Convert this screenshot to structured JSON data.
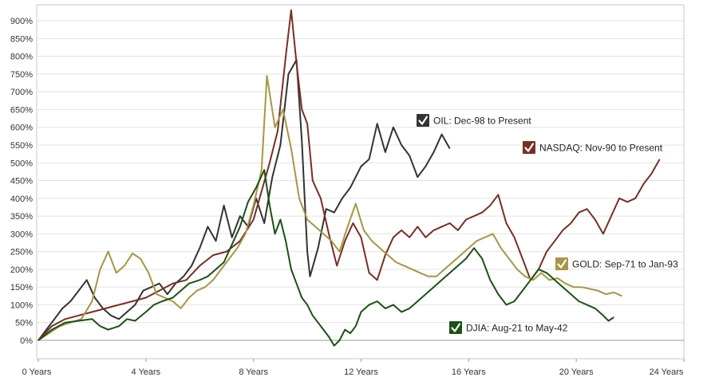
{
  "chart_data": {
    "type": "line",
    "title": "",
    "xlabel": "",
    "ylabel": "",
    "xlim": [
      0,
      24
    ],
    "ylim": [
      -20,
      940
    ],
    "grid": true,
    "legend_placement": "inline labels near series ends",
    "x_ticks": [
      0,
      4,
      8,
      12,
      16,
      20,
      24
    ],
    "x_tick_labels": [
      "0 Years",
      "4 Years",
      "8 Years",
      "12 Years",
      "16 Years",
      "20 Years",
      "24 Years"
    ],
    "y_ticks": [
      0,
      50,
      100,
      150,
      200,
      250,
      300,
      350,
      400,
      450,
      500,
      550,
      600,
      650,
      700,
      750,
      800,
      850,
      900
    ],
    "y_tick_labels": [
      "0%",
      "50%",
      "100%",
      "150%",
      "200%",
      "250%",
      "300%",
      "350%",
      "400%",
      "450%",
      "500%",
      "550%",
      "600%",
      "650%",
      "700%",
      "750%",
      "800%",
      "850%",
      "900%"
    ],
    "series": [
      {
        "name": "OIL: Dec-98 to Present",
        "color": "#333333",
        "points": [
          [
            0,
            0
          ],
          [
            0.3,
            30
          ],
          [
            0.6,
            60
          ],
          [
            0.9,
            90
          ],
          [
            1.2,
            110
          ],
          [
            1.5,
            140
          ],
          [
            1.8,
            170
          ],
          [
            2.1,
            120
          ],
          [
            2.4,
            90
          ],
          [
            2.7,
            70
          ],
          [
            3,
            60
          ],
          [
            3.3,
            80
          ],
          [
            3.6,
            100
          ],
          [
            3.9,
            140
          ],
          [
            4.2,
            150
          ],
          [
            4.5,
            160
          ],
          [
            4.8,
            130
          ],
          [
            5.1,
            160
          ],
          [
            5.4,
            180
          ],
          [
            5.7,
            210
          ],
          [
            6,
            260
          ],
          [
            6.3,
            320
          ],
          [
            6.6,
            280
          ],
          [
            6.9,
            380
          ],
          [
            7.2,
            290
          ],
          [
            7.5,
            350
          ],
          [
            7.8,
            320
          ],
          [
            8.1,
            400
          ],
          [
            8.4,
            330
          ],
          [
            8.7,
            460
          ],
          [
            9,
            550
          ],
          [
            9.3,
            750
          ],
          [
            9.6,
            790
          ],
          [
            9.8,
            560
          ],
          [
            10,
            250
          ],
          [
            10.1,
            180
          ],
          [
            10.4,
            260
          ],
          [
            10.7,
            370
          ],
          [
            11,
            360
          ],
          [
            11.3,
            400
          ],
          [
            11.6,
            430
          ],
          [
            12,
            490
          ],
          [
            12.3,
            510
          ],
          [
            12.6,
            610
          ],
          [
            12.9,
            530
          ],
          [
            13.2,
            600
          ],
          [
            13.5,
            550
          ],
          [
            13.8,
            520
          ],
          [
            14.1,
            460
          ],
          [
            14.4,
            490
          ],
          [
            14.7,
            530
          ],
          [
            15,
            580
          ],
          [
            15.3,
            540
          ]
        ]
      },
      {
        "name": "NASDAQ: Nov-90 to Present",
        "color": "#7a2e25",
        "points": [
          [
            0,
            0
          ],
          [
            0.5,
            40
          ],
          [
            1,
            60
          ],
          [
            1.5,
            70
          ],
          [
            2,
            80
          ],
          [
            2.5,
            90
          ],
          [
            3,
            100
          ],
          [
            3.5,
            110
          ],
          [
            4,
            120
          ],
          [
            4.5,
            140
          ],
          [
            5,
            160
          ],
          [
            5.5,
            170
          ],
          [
            6,
            210
          ],
          [
            6.5,
            240
          ],
          [
            7,
            250
          ],
          [
            7.5,
            280
          ],
          [
            8,
            340
          ],
          [
            8.3,
            420
          ],
          [
            8.6,
            500
          ],
          [
            8.9,
            590
          ],
          [
            9.2,
            800
          ],
          [
            9.4,
            930
          ],
          [
            9.6,
            780
          ],
          [
            9.8,
            650
          ],
          [
            10,
            610
          ],
          [
            10.2,
            450
          ],
          [
            10.5,
            400
          ],
          [
            10.8,
            300
          ],
          [
            11.1,
            210
          ],
          [
            11.4,
            280
          ],
          [
            11.7,
            330
          ],
          [
            12,
            290
          ],
          [
            12.3,
            190
          ],
          [
            12.6,
            170
          ],
          [
            12.9,
            240
          ],
          [
            13.2,
            290
          ],
          [
            13.5,
            310
          ],
          [
            13.8,
            290
          ],
          [
            14.1,
            320
          ],
          [
            14.4,
            290
          ],
          [
            14.7,
            310
          ],
          [
            15,
            320
          ],
          [
            15.3,
            330
          ],
          [
            15.6,
            310
          ],
          [
            15.9,
            340
          ],
          [
            16.2,
            350
          ],
          [
            16.5,
            360
          ],
          [
            16.8,
            380
          ],
          [
            17.1,
            410
          ],
          [
            17.4,
            330
          ],
          [
            17.7,
            290
          ],
          [
            18,
            230
          ],
          [
            18.3,
            170
          ],
          [
            18.6,
            200
          ],
          [
            18.9,
            250
          ],
          [
            19.2,
            280
          ],
          [
            19.5,
            310
          ],
          [
            19.8,
            330
          ],
          [
            20.1,
            360
          ],
          [
            20.4,
            370
          ],
          [
            20.7,
            340
          ],
          [
            21,
            300
          ],
          [
            21.3,
            350
          ],
          [
            21.6,
            400
          ],
          [
            21.9,
            390
          ],
          [
            22.2,
            400
          ],
          [
            22.5,
            440
          ],
          [
            22.8,
            470
          ],
          [
            23.1,
            510
          ]
        ]
      },
      {
        "name": "GOLD: Sep-71 to Jan-93",
        "color": "#a89645",
        "points": [
          [
            0,
            0
          ],
          [
            0.4,
            20
          ],
          [
            0.8,
            40
          ],
          [
            1.2,
            50
          ],
          [
            1.6,
            60
          ],
          [
            2,
            110
          ],
          [
            2.3,
            200
          ],
          [
            2.6,
            250
          ],
          [
            2.9,
            190
          ],
          [
            3.2,
            210
          ],
          [
            3.5,
            245
          ],
          [
            3.8,
            230
          ],
          [
            4.1,
            190
          ],
          [
            4.4,
            130
          ],
          [
            4.7,
            120
          ],
          [
            5,
            110
          ],
          [
            5.3,
            90
          ],
          [
            5.6,
            120
          ],
          [
            5.9,
            140
          ],
          [
            6.2,
            150
          ],
          [
            6.5,
            170
          ],
          [
            6.8,
            200
          ],
          [
            7.1,
            230
          ],
          [
            7.4,
            260
          ],
          [
            7.7,
            300
          ],
          [
            8,
            380
          ],
          [
            8.3,
            480
          ],
          [
            8.5,
            745
          ],
          [
            8.8,
            600
          ],
          [
            9.1,
            650
          ],
          [
            9.4,
            540
          ],
          [
            9.7,
            400
          ],
          [
            10,
            340
          ],
          [
            10.3,
            320
          ],
          [
            10.6,
            300
          ],
          [
            10.9,
            280
          ],
          [
            11.2,
            250
          ],
          [
            11.5,
            320
          ],
          [
            11.8,
            385
          ],
          [
            12.1,
            310
          ],
          [
            12.4,
            280
          ],
          [
            12.7,
            260
          ],
          [
            13,
            240
          ],
          [
            13.3,
            220
          ],
          [
            13.6,
            210
          ],
          [
            13.9,
            200
          ],
          [
            14.2,
            190
          ],
          [
            14.5,
            180
          ],
          [
            14.8,
            180
          ],
          [
            15.1,
            200
          ],
          [
            15.4,
            220
          ],
          [
            15.7,
            240
          ],
          [
            16,
            260
          ],
          [
            16.3,
            280
          ],
          [
            16.6,
            290
          ],
          [
            16.9,
            300
          ],
          [
            17.2,
            260
          ],
          [
            17.5,
            230
          ],
          [
            17.8,
            200
          ],
          [
            18.1,
            180
          ],
          [
            18.4,
            170
          ],
          [
            18.7,
            190
          ],
          [
            19,
            170
          ],
          [
            19.3,
            175
          ],
          [
            19.6,
            160
          ],
          [
            19.9,
            150
          ],
          [
            20.2,
            150
          ],
          [
            20.5,
            145
          ],
          [
            20.8,
            140
          ],
          [
            21.1,
            130
          ],
          [
            21.4,
            135
          ],
          [
            21.7,
            125
          ]
        ]
      },
      {
        "name": "DJIA: Aug-21 to May-42",
        "color": "#1a5214",
        "points": [
          [
            0,
            0
          ],
          [
            0.5,
            30
          ],
          [
            1,
            50
          ],
          [
            1.5,
            55
          ],
          [
            2,
            60
          ],
          [
            2.3,
            40
          ],
          [
            2.6,
            30
          ],
          [
            3,
            40
          ],
          [
            3.3,
            60
          ],
          [
            3.6,
            55
          ],
          [
            4,
            80
          ],
          [
            4.3,
            100
          ],
          [
            4.6,
            110
          ],
          [
            5,
            120
          ],
          [
            5.3,
            140
          ],
          [
            5.6,
            160
          ],
          [
            6,
            170
          ],
          [
            6.3,
            180
          ],
          [
            6.6,
            200
          ],
          [
            6.9,
            220
          ],
          [
            7.2,
            270
          ],
          [
            7.5,
            320
          ],
          [
            7.8,
            390
          ],
          [
            8.1,
            430
          ],
          [
            8.4,
            480
          ],
          [
            8.6,
            380
          ],
          [
            8.8,
            300
          ],
          [
            9,
            340
          ],
          [
            9.2,
            280
          ],
          [
            9.4,
            200
          ],
          [
            9.6,
            160
          ],
          [
            9.8,
            120
          ],
          [
            10,
            100
          ],
          [
            10.2,
            70
          ],
          [
            10.4,
            50
          ],
          [
            10.6,
            30
          ],
          [
            10.8,
            10
          ],
          [
            11,
            -15
          ],
          [
            11.2,
            0
          ],
          [
            11.4,
            30
          ],
          [
            11.6,
            20
          ],
          [
            11.8,
            40
          ],
          [
            12,
            80
          ],
          [
            12.3,
            100
          ],
          [
            12.6,
            110
          ],
          [
            12.9,
            90
          ],
          [
            13.2,
            100
          ],
          [
            13.5,
            80
          ],
          [
            13.8,
            90
          ],
          [
            14.1,
            110
          ],
          [
            14.4,
            130
          ],
          [
            14.7,
            150
          ],
          [
            15,
            170
          ],
          [
            15.3,
            190
          ],
          [
            15.6,
            210
          ],
          [
            15.9,
            230
          ],
          [
            16.2,
            260
          ],
          [
            16.5,
            230
          ],
          [
            16.8,
            170
          ],
          [
            17.1,
            130
          ],
          [
            17.4,
            100
          ],
          [
            17.7,
            110
          ],
          [
            18,
            140
          ],
          [
            18.3,
            170
          ],
          [
            18.6,
            200
          ],
          [
            18.9,
            190
          ],
          [
            19.2,
            170
          ],
          [
            19.5,
            150
          ],
          [
            19.8,
            130
          ],
          [
            20.1,
            110
          ],
          [
            20.4,
            100
          ],
          [
            20.7,
            90
          ],
          [
            21,
            70
          ],
          [
            21.2,
            55
          ],
          [
            21.4,
            65
          ]
        ]
      }
    ],
    "labels": [
      {
        "series": 0,
        "text": "OIL: Dec-98 to Present"
      },
      {
        "series": 1,
        "text": "NASDAQ: Nov-90 to Present"
      },
      {
        "series": 2,
        "text": "GOLD: Sep-71 to Jan-93"
      },
      {
        "series": 3,
        "text": "DJIA: Aug-21 to May-42"
      }
    ]
  }
}
